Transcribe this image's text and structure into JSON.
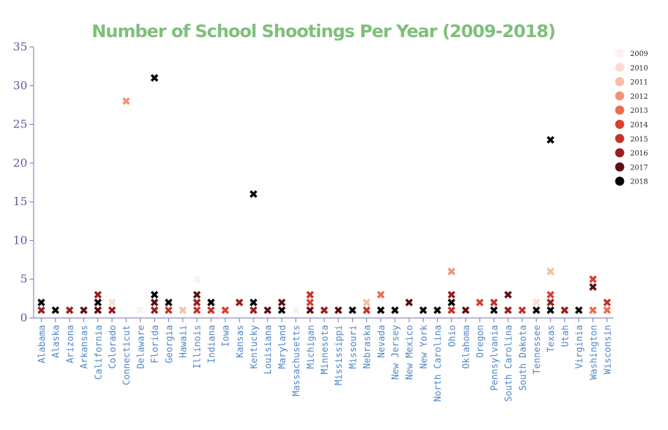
{
  "chart_data": {
    "type": "scatter",
    "title": "Number of School Shootings Per Year (2009-2018)",
    "xlabel": "",
    "ylabel": "",
    "ylim": [
      0,
      35
    ],
    "yticks": [
      0,
      5,
      10,
      15,
      20,
      25,
      30,
      35
    ],
    "grid": false,
    "marker": "x",
    "legend_position": "top-right",
    "legend": [
      {
        "year": "2009",
        "color": "#fcf1ee"
      },
      {
        "year": "2010",
        "color": "#fbdccf"
      },
      {
        "year": "2011",
        "color": "#f6bea8"
      },
      {
        "year": "2012",
        "color": "#ef9479"
      },
      {
        "year": "2013",
        "color": "#ec6c52"
      },
      {
        "year": "2014",
        "color": "#dd3e2d"
      },
      {
        "year": "2015",
        "color": "#c4332a"
      },
      {
        "year": "2016",
        "color": "#9a1f1e"
      },
      {
        "year": "2017",
        "color": "#5c0f12"
      },
      {
        "year": "2018",
        "color": "#000000"
      }
    ],
    "categories": [
      "Alabama",
      "Alaska",
      "Arizona",
      "Arkansas",
      "California",
      "Colorado",
      "Connecticut",
      "Delaware",
      "Florida",
      "Georgia",
      "Hawaii",
      "Illinois",
      "Indiana",
      "Iowa",
      "Kansas",
      "Kentucky",
      "Louisiana",
      "Maryland",
      "Massachusetts",
      "Michigan",
      "Minnesota",
      "Mississippi",
      "Missouri",
      "Nebraska",
      "Nevada",
      "New Jersey",
      "New Mexico",
      "New York",
      "North Carolina",
      "Ohio",
      "Oklahoma",
      "Oregon",
      "Pennsylvania",
      "South Carolina",
      "South Dakota",
      "Tennessee",
      "Texas",
      "Utah",
      "Virginia",
      "Washington",
      "Wisconsin"
    ],
    "points": [
      {
        "state": "Alabama",
        "year": "2016",
        "value": 1
      },
      {
        "state": "Alabama",
        "year": "2018",
        "value": 2
      },
      {
        "state": "Alaska",
        "year": "2018",
        "value": 1
      },
      {
        "state": "Arizona",
        "year": "2016",
        "value": 1
      },
      {
        "state": "Arkansas",
        "year": "2017",
        "value": 1
      },
      {
        "state": "California",
        "year": "2015",
        "value": 1
      },
      {
        "state": "California",
        "year": "2016",
        "value": 3
      },
      {
        "state": "California",
        "year": "2017",
        "value": 1
      },
      {
        "state": "California",
        "year": "2018",
        "value": 2
      },
      {
        "state": "Colorado",
        "year": "2010",
        "value": 2
      },
      {
        "state": "Colorado",
        "year": "2016",
        "value": 1
      },
      {
        "state": "Connecticut",
        "year": "2012",
        "value": 28
      },
      {
        "state": "Delaware",
        "year": "2009",
        "value": 1
      },
      {
        "state": "Florida",
        "year": "2016",
        "value": 1
      },
      {
        "state": "Florida",
        "year": "2017",
        "value": 2
      },
      {
        "state": "Florida",
        "year": "2018",
        "value": 3
      },
      {
        "state": "Florida",
        "year": "2018",
        "value": 31
      },
      {
        "state": "Georgia",
        "year": "2015",
        "value": 1
      },
      {
        "state": "Georgia",
        "year": "2018",
        "value": 2
      },
      {
        "state": "Hawaii",
        "year": "2011",
        "value": 1
      },
      {
        "state": "Illinois",
        "year": "2009",
        "value": 5
      },
      {
        "state": "Illinois",
        "year": "2015",
        "value": 1
      },
      {
        "state": "Illinois",
        "year": "2016",
        "value": 2
      },
      {
        "state": "Illinois",
        "year": "2017",
        "value": 3
      },
      {
        "state": "Indiana",
        "year": "2015",
        "value": 1
      },
      {
        "state": "Indiana",
        "year": "2018",
        "value": 2
      },
      {
        "state": "Iowa",
        "year": "2014",
        "value": 1
      },
      {
        "state": "Kansas",
        "year": "2016",
        "value": 2
      },
      {
        "state": "Kentucky",
        "year": "2016",
        "value": 1
      },
      {
        "state": "Kentucky",
        "year": "2018",
        "value": 2
      },
      {
        "state": "Kentucky",
        "year": "2018",
        "value": 16
      },
      {
        "state": "Louisiana",
        "year": "2017",
        "value": 1
      },
      {
        "state": "Maryland",
        "year": "2017",
        "value": 2
      },
      {
        "state": "Maryland",
        "year": "2018",
        "value": 1
      },
      {
        "state": "Massachusetts",
        "year": "2009",
        "value": 1
      },
      {
        "state": "Michigan",
        "year": "2014",
        "value": 2
      },
      {
        "state": "Michigan",
        "year": "2015",
        "value": 3
      },
      {
        "state": "Michigan",
        "year": "2017",
        "value": 1
      },
      {
        "state": "Minnesota",
        "year": "2016",
        "value": 1
      },
      {
        "state": "Mississippi",
        "year": "2017",
        "value": 1
      },
      {
        "state": "Missouri",
        "year": "2018",
        "value": 1
      },
      {
        "state": "Nebraska",
        "year": "2011",
        "value": 2
      },
      {
        "state": "Nebraska",
        "year": "2015",
        "value": 1
      },
      {
        "state": "Nevada",
        "year": "2013",
        "value": 3
      },
      {
        "state": "Nevada",
        "year": "2018",
        "value": 1
      },
      {
        "state": "New Jersey",
        "year": "2018",
        "value": 1
      },
      {
        "state": "New Mexico",
        "year": "2017",
        "value": 2
      },
      {
        "state": "New York",
        "year": "2018",
        "value": 1
      },
      {
        "state": "North Carolina",
        "year": "2018",
        "value": 1
      },
      {
        "state": "Ohio",
        "year": "2012",
        "value": 6
      },
      {
        "state": "Ohio",
        "year": "2015",
        "value": 1
      },
      {
        "state": "Ohio",
        "year": "2016",
        "value": 3
      },
      {
        "state": "Ohio",
        "year": "2018",
        "value": 2
      },
      {
        "state": "Oklahoma",
        "year": "2017",
        "value": 1
      },
      {
        "state": "Oregon",
        "year": "2014",
        "value": 2
      },
      {
        "state": "Pennsylvania",
        "year": "2015",
        "value": 2
      },
      {
        "state": "Pennsylvania",
        "year": "2018",
        "value": 1
      },
      {
        "state": "South Carolina",
        "year": "2016",
        "value": 1
      },
      {
        "state": "South Carolina",
        "year": "2017",
        "value": 3
      },
      {
        "state": "South Dakota",
        "year": "2015",
        "value": 1
      },
      {
        "state": "Tennessee",
        "year": "2010",
        "value": 2
      },
      {
        "state": "Tennessee",
        "year": "2018",
        "value": 1
      },
      {
        "state": "Texas",
        "year": "2011",
        "value": 6
      },
      {
        "state": "Texas",
        "year": "2014",
        "value": 3
      },
      {
        "state": "Texas",
        "year": "2016",
        "value": 2
      },
      {
        "state": "Texas",
        "year": "2018",
        "value": 1
      },
      {
        "state": "Texas",
        "year": "2018",
        "value": 23
      },
      {
        "state": "Utah",
        "year": "2016",
        "value": 1
      },
      {
        "state": "Virginia",
        "year": "2018",
        "value": 1
      },
      {
        "state": "Washington",
        "year": "2014",
        "value": 5
      },
      {
        "state": "Washington",
        "year": "2017",
        "value": 4
      },
      {
        "state": "Washington",
        "year": "2013",
        "value": 1
      },
      {
        "state": "Wisconsin",
        "year": "2015",
        "value": 2
      },
      {
        "state": "Wisconsin",
        "year": "2013",
        "value": 1
      }
    ]
  }
}
